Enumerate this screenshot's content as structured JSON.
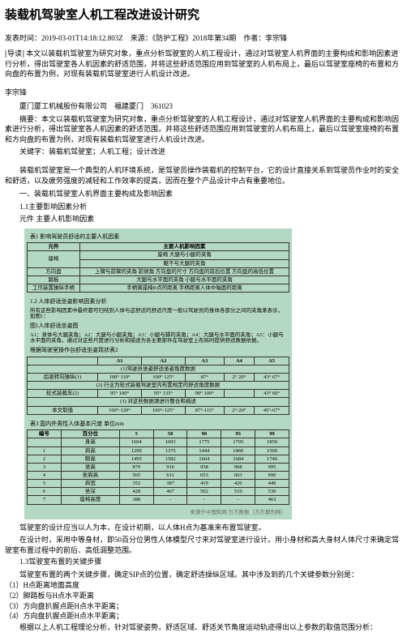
{
  "title": "装载机驾驶室人机工程改进设计研究",
  "meta": "发表时间：2019-03-01T14:18:12.803Z　来源：《防护工程》2018年第34期　作者：李宗锋",
  "intro": "[导读] 本文以装载机驾驶室为研究对象，重点分析驾驶室的人机工程设计，通过对驾驶室人机界面的主要构成和影响因素进行分析，得出驾驶室各人机因素的舒适范围，并将这些舒适范围应用到驾驶室的人机布局上，最后以驾驶室座椅的布置和方向盘的布置为例，对现有装载机驾驶室进行人机设计改进。",
  "author": "李宗锋",
  "affiliation": "厦门厦工机械股份有限公司　福建厦门　361023",
  "abstract": "摘要：本文以装载机驾驶室为研究对象，重点分析驾驶室的人机工程设计，通过对驾驶室人机界面的主要构成和影响因素进行分析，得出驾驶室各人机因素的舒适范围，并将这些舒适范围应用到驾驶室的人机布局上，最后以驾驶室座椅的布置和方向盘的布置为例，对现有装载机驾驶室进行人机设计改进。",
  "keywords": "关键字：装载机驾驶室；人机工程；设计改进",
  "p1": "装载机驾驶室是一个典型的人机环境系统，是驾驶员操作装载机的控制平台，它的设计直接关系到驾驶员作业时的安全和舒适，以及疲劳强度的减轻和工作效率的提高，因而在整个产品设计中占有重要地位。",
  "s1": "一、装载机驾驶室人机界面主要构成及影响因素",
  "s1_1": "1.1主要影响因素分析",
  "s1_1_1": "元件 主要人机影响因素",
  "t1_caption": "表1  影响驾驶员舒适的主要人机因素",
  "t1": {
    "cols": [
      "元件",
      "主要人机影响因素"
    ],
    "rows": [
      [
        "座椅",
        "座椅 大腿与小腿的夹角"
      ],
      [
        "",
        "躯干与大腿的夹角"
      ],
      [
        "方向盘",
        "上臂与前臂的夹角  前倾角  方向盘的尺寸  方向盘的前后位置  方向盘的高低位置"
      ],
      [
        "踏板",
        "大腿与水平面的夹角  小腿与水平面的夹角"
      ],
      [
        "工作装置操纵手柄",
        "手柄离座椅R点的距离 手柄距离人体中轴面的距离"
      ]
    ],
    "background": "#b5d8c4"
  },
  "s1_2": "1.2 人体舒适坐姿影响因素分析",
  "p1_2": "所有这些影响因素中最终都可归结到人体与这舒适的舒适尺度一般以驾驶员的身体各部分之间的夹角来表示，如图1：",
  "fig1_caption": "图1人体舒适坐姿图",
  "t2_caption": "A1：身体与大腿夹角；A2：大腿与小腿夹角；A3：小腿与脚的夹角；A4：大腿与水平面的夹角；A5：小腿与水平面的夹角，通过对这些尺度进行分析和描述为各主要部件在驾驶室上布局时提供舒适数据依据。",
  "t2_header": "根据驾驶室操作台舒适坐姿现状表2",
  "t2": {
    "cols": [
      "",
      "A1",
      "A2",
      "A3",
      "A4",
      "A5"
    ],
    "rows": [
      [
        "(1)驾驶员坐姿舒适坐姿角度数据",
        "",
        "",
        "",
        "",
        ""
      ],
      [
        "后驱转向操纵(1)",
        "100° 110°",
        "100° 125°",
        "87°",
        "2° 20°",
        "43° 67°"
      ],
      [
        "(2) 行业为轮式装载驾驶室内布置规定的舒适角度数据",
        "",
        "",
        "",
        "",
        ""
      ],
      [
        "轮式装载车(2)",
        "95° 100°",
        "95° 135°",
        "90° 100°",
        "",
        "43° 60°"
      ],
      [
        "(3) 对这些数据源进行整合和描述",
        "",
        "",
        "",
        "",
        ""
      ],
      [
        "本文取值",
        "100°-120°",
        "100°-125°",
        "87°-115°",
        "2°-20°",
        "45°-67°"
      ]
    ]
  },
  "t3_caption": "表3 国内外男性人体基本尺度 单位mm",
  "t3": {
    "cols": [
      "编号",
      "百分位",
      "5",
      "50",
      "90",
      "95",
      "99"
    ],
    "rows": [
      [
        "",
        "身高",
        "1604",
        "1693",
        "1775",
        "1795",
        "1850"
      ],
      [
        "1",
        "肩高",
        "1299",
        "1375",
        "1444",
        "1460",
        "1500"
      ],
      [
        "2",
        "眼高",
        "1495",
        "1582",
        "1664",
        "1684",
        "1740"
      ],
      [
        "3",
        "坐高",
        "870",
        "916",
        "958",
        "968",
        "995"
      ],
      [
        "4",
        "坐肩高",
        "565",
        "611",
        "653",
        "663",
        "690"
      ],
      [
        "5",
        "肩宽",
        "352",
        "387",
        "419",
        "426",
        "449"
      ],
      [
        "6",
        "坐深",
        "428",
        "467",
        "502",
        "510",
        "530"
      ],
      [
        "7",
        "座椅高度",
        "388",
        "-",
        "-",
        "-",
        "463"
      ]
    ]
  },
  "footer_source": "来源于中国知网 万方数据（万方期刊网）",
  "s3_p1": "驾驶室的设计应当以人为本，在设计初期，以人体H点为基准来布置驾驶室。",
  "s3_p2": "在设计时，采用中等身材，即50百分位男性人体模型尺寸来对驾驶室进行设计。用小身材和高大身材人体尺寸来确定驾驶室布置过程中的前后、高低调整范围。",
  "s1_3": "1.3驾驶室布置的关键步骤",
  "s1_3_p": "驾驶室布置的两个关键步骤，确定SIP点的位置，确定舒适操纵区域。其中涉及到的几个关键参数分别是：",
  "li1": "（1）H点距离地面高度",
  "li2": "（2）脚踏板与H点水平距离",
  "li3": "（3）方向盘扒握点距H点水平距离；",
  "li4": "（4）方向盘扒握点距H点水平距离；",
  "s1_3_p2": "根据以上人机工程理论分析，针对驾驶姿势，舒适区域、舒适关节角度运动轨迹得出以上参数的取值范围分析："
}
